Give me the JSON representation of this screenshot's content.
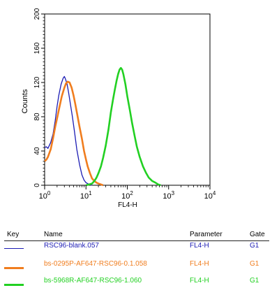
{
  "chart_data": {
    "type": "line",
    "xlabel": "FL4-H",
    "ylabel": "Counts",
    "xscale": "log",
    "xlim": [
      1,
      10000
    ],
    "ylim": [
      0,
      200
    ],
    "yticks": [
      0,
      40,
      80,
      120,
      160,
      200
    ],
    "xticks": [
      {
        "value": 1,
        "base": "10",
        "exp": "0"
      },
      {
        "value": 10,
        "base": "10",
        "exp": "1"
      },
      {
        "value": 100,
        "base": "10",
        "exp": "2"
      },
      {
        "value": 1000,
        "base": "10",
        "exp": "3"
      },
      {
        "value": 10000,
        "base": "10",
        "exp": "4"
      }
    ],
    "grid": false,
    "series": [
      {
        "name": "RSC96-blank.057",
        "color": "#1c1cb4",
        "points": [
          [
            1,
            44
          ],
          [
            1.1,
            45
          ],
          [
            1.2,
            43
          ],
          [
            1.4,
            50
          ],
          [
            1.6,
            60
          ],
          [
            1.8,
            75
          ],
          [
            2.0,
            92
          ],
          [
            2.2,
            105
          ],
          [
            2.5,
            118
          ],
          [
            2.8,
            125
          ],
          [
            3.0,
            127
          ],
          [
            3.2,
            124
          ],
          [
            3.5,
            118
          ],
          [
            3.8,
            108
          ],
          [
            4.2,
            95
          ],
          [
            4.7,
            80
          ],
          [
            5.3,
            62
          ],
          [
            6,
            42
          ],
          [
            7,
            24
          ],
          [
            8,
            12
          ],
          [
            9,
            6
          ],
          [
            10,
            3
          ],
          [
            12,
            1
          ],
          [
            14,
            0
          ]
        ]
      },
      {
        "name": "bs-0295P-AF647-RSC96-0.1.058",
        "color": "#f07d1e",
        "points": [
          [
            1,
            28
          ],
          [
            1.1,
            30
          ],
          [
            1.2,
            33
          ],
          [
            1.4,
            42
          ],
          [
            1.6,
            55
          ],
          [
            1.8,
            68
          ],
          [
            2.0,
            78
          ],
          [
            2.3,
            92
          ],
          [
            2.6,
            104
          ],
          [
            3.0,
            114
          ],
          [
            3.3,
            119
          ],
          [
            3.6,
            121
          ],
          [
            4.0,
            120
          ],
          [
            4.5,
            114
          ],
          [
            5,
            105
          ],
          [
            5.5,
            95
          ],
          [
            6.2,
            82
          ],
          [
            7,
            68
          ],
          [
            8,
            54
          ],
          [
            9,
            40
          ],
          [
            10,
            30
          ],
          [
            11,
            22
          ],
          [
            12.5,
            14
          ],
          [
            14,
            8
          ],
          [
            16,
            5
          ],
          [
            18,
            3
          ],
          [
            20,
            2
          ],
          [
            23,
            1
          ],
          [
            26,
            0
          ]
        ]
      },
      {
        "name": "bs-5968R-AF647-RSC96-1.060",
        "color": "#22d022",
        "points": [
          [
            10,
            0
          ],
          [
            12,
            1
          ],
          [
            14,
            2
          ],
          [
            16,
            5
          ],
          [
            18,
            9
          ],
          [
            20,
            14
          ],
          [
            23,
            22
          ],
          [
            26,
            32
          ],
          [
            30,
            46
          ],
          [
            35,
            65
          ],
          [
            40,
            85
          ],
          [
            45,
            100
          ],
          [
            50,
            112
          ],
          [
            55,
            122
          ],
          [
            60,
            130
          ],
          [
            65,
            135
          ],
          [
            70,
            137
          ],
          [
            75,
            135
          ],
          [
            80,
            130
          ],
          [
            90,
            118
          ],
          [
            100,
            104
          ],
          [
            115,
            88
          ],
          [
            130,
            73
          ],
          [
            150,
            58
          ],
          [
            170,
            45
          ],
          [
            200,
            33
          ],
          [
            240,
            22
          ],
          [
            280,
            15
          ],
          [
            330,
            9
          ],
          [
            400,
            5
          ],
          [
            480,
            3
          ],
          [
            560,
            1
          ],
          [
            640,
            0
          ]
        ]
      }
    ]
  },
  "legend": {
    "headers": {
      "key": "Key",
      "name": "Name",
      "parameter": "Parameter",
      "gate": "Gate"
    },
    "rows": [
      {
        "name": "RSC96-blank.057",
        "parameter": "FL4-H",
        "gate": "G1",
        "color": "#1c1cb4"
      },
      {
        "name": "bs-0295P-AF647-RSC96-0.1.058",
        "parameter": "FL4-H",
        "gate": "G1",
        "color": "#f07d1e"
      },
      {
        "name": "bs-5968R-AF647-RSC96-1.060",
        "parameter": "FL4-H",
        "gate": "G1",
        "color": "#22d022"
      }
    ]
  }
}
